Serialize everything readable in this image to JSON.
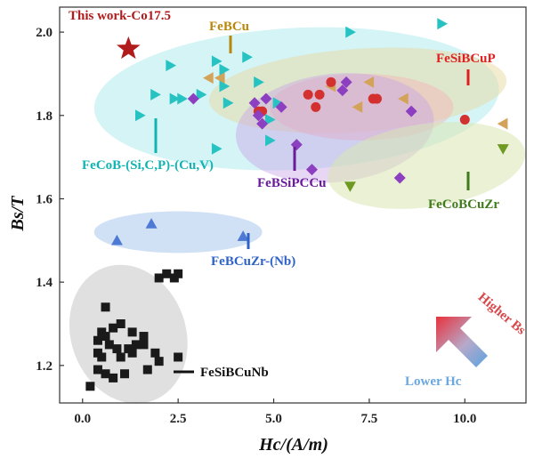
{
  "chart_data": {
    "type": "scatter",
    "xlabel": "Hc/(A/m)",
    "ylabel": "Bs/T",
    "xlim": [
      -0.6,
      11.6
    ],
    "ylim": [
      1.11,
      2.06
    ],
    "x_ticks": [
      "0.0",
      "2.5",
      "5.0",
      "7.5",
      "10.0"
    ],
    "y_ticks": [
      "1.2",
      "1.4",
      "1.6",
      "1.8",
      "2.0"
    ],
    "grid": false,
    "series": [
      {
        "name": "This work-Co17.5",
        "color": "#b11b1b",
        "marker": "star",
        "label_color": "#b11b1b",
        "points": [
          [
            1.2,
            1.96
          ]
        ]
      },
      {
        "name": "FeBCu",
        "color": "#d4a35a",
        "marker": "triangle-left",
        "label_color": "#b8860b",
        "points": [
          [
            3.3,
            1.89
          ],
          [
            3.6,
            1.89
          ],
          [
            6.5,
            1.87
          ],
          [
            7.2,
            1.82
          ],
          [
            8.4,
            1.84
          ],
          [
            11.0,
            1.78
          ],
          [
            7.5,
            1.88
          ]
        ]
      },
      {
        "name": "FeSiBCuP",
        "color": "#d33030",
        "marker": "circle",
        "label_color": "#e02020",
        "points": [
          [
            4.7,
            1.81
          ],
          [
            4.6,
            1.81
          ],
          [
            5.9,
            1.85
          ],
          [
            6.2,
            1.85
          ],
          [
            6.1,
            1.82
          ],
          [
            6.5,
            1.88
          ],
          [
            7.6,
            1.84
          ],
          [
            7.7,
            1.84
          ],
          [
            10.0,
            1.79
          ]
        ]
      },
      {
        "name": "FeCoB-(Si,C,P)-(Cu,V)",
        "color": "#27c3c3",
        "marker": "triangle-right",
        "label_color": "#12b3b3",
        "points": [
          [
            7.0,
            2.0
          ],
          [
            9.4,
            2.02
          ],
          [
            3.5,
            1.93
          ],
          [
            4.3,
            1.94
          ],
          [
            2.3,
            1.92
          ],
          [
            3.7,
            1.91
          ],
          [
            4.6,
            1.88
          ],
          [
            3.7,
            1.87
          ],
          [
            1.9,
            1.85
          ],
          [
            2.4,
            1.84
          ],
          [
            2.6,
            1.84
          ],
          [
            3.1,
            1.85
          ],
          [
            3.8,
            1.83
          ],
          [
            5.1,
            1.83
          ],
          [
            4.9,
            1.79
          ],
          [
            1.5,
            1.8
          ],
          [
            4.9,
            1.74
          ],
          [
            3.5,
            1.72
          ]
        ]
      },
      {
        "name": "FeBSiPCCu",
        "color": "#8c3fc0",
        "marker": "diamond",
        "label_color": "#6a1b9a",
        "points": [
          [
            2.9,
            1.84
          ],
          [
            4.5,
            1.83
          ],
          [
            4.8,
            1.84
          ],
          [
            4.6,
            1.8
          ],
          [
            4.7,
            1.78
          ],
          [
            5.2,
            1.82
          ],
          [
            6.8,
            1.86
          ],
          [
            6.9,
            1.88
          ],
          [
            8.6,
            1.81
          ],
          [
            5.6,
            1.73
          ],
          [
            6.0,
            1.67
          ],
          [
            8.3,
            1.65
          ]
        ]
      },
      {
        "name": "FeCoBCuZr",
        "color": "#6e9a24",
        "marker": "triangle-down",
        "label_color": "#3f7a1b",
        "points": [
          [
            11.0,
            1.72
          ],
          [
            7.0,
            1.63
          ]
        ]
      },
      {
        "name": "FeBCuZr-(Nb)",
        "color": "#4e79d4",
        "marker": "triangle-up",
        "label_color": "#2f62c8",
        "points": [
          [
            0.9,
            1.5
          ],
          [
            1.8,
            1.54
          ],
          [
            4.2,
            1.51
          ]
        ]
      },
      {
        "name": "FeSiBCuNb",
        "color": "#1a1a1a",
        "marker": "square",
        "label_color": "#111111",
        "points": [
          [
            2.0,
            1.41
          ],
          [
            2.2,
            1.42
          ],
          [
            2.5,
            1.42
          ],
          [
            2.4,
            1.41
          ],
          [
            0.2,
            1.15
          ],
          [
            0.4,
            1.19
          ],
          [
            0.6,
            1.18
          ],
          [
            0.8,
            1.17
          ],
          [
            1.1,
            1.18
          ],
          [
            0.5,
            1.22
          ],
          [
            0.7,
            1.25
          ],
          [
            0.9,
            1.24
          ],
          [
            1.2,
            1.24
          ],
          [
            1.4,
            1.25
          ],
          [
            1.6,
            1.25
          ],
          [
            0.4,
            1.26
          ],
          [
            0.6,
            1.27
          ],
          [
            0.8,
            1.29
          ],
          [
            1.0,
            1.3
          ],
          [
            1.3,
            1.28
          ],
          [
            1.6,
            1.27
          ],
          [
            1.9,
            1.23
          ],
          [
            0.6,
            1.34
          ],
          [
            0.4,
            1.23
          ],
          [
            1.3,
            1.23
          ],
          [
            2.0,
            1.21
          ],
          [
            2.5,
            1.22
          ],
          [
            1.7,
            1.19
          ],
          [
            1.0,
            1.22
          ],
          [
            0.5,
            1.28
          ]
        ]
      }
    ],
    "annotations": {
      "higher": "Higher Bs",
      "lower": "Lower Hc"
    }
  }
}
